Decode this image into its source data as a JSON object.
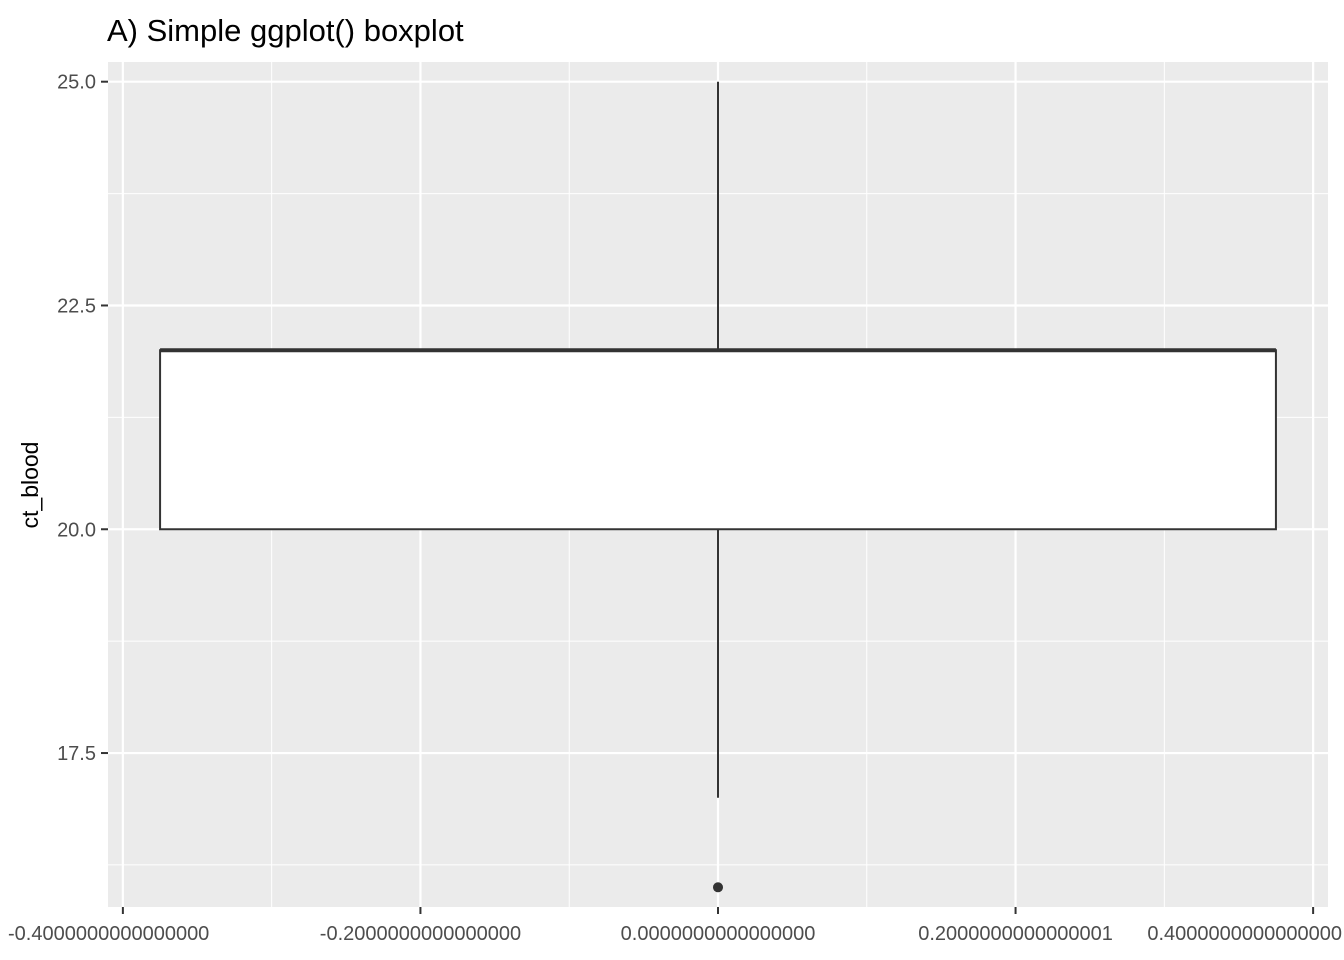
{
  "chart_data": {
    "type": "box",
    "title": "A) Simple ggplot() boxplot",
    "xlabel": "",
    "ylabel": "ct_blood",
    "xlim": [
      -0.41,
      0.41
    ],
    "ylim": [
      15.78,
      25.22
    ],
    "x_ticks": [
      {
        "value": -0.4,
        "label": "-0.4000000000000000"
      },
      {
        "value": -0.2,
        "label": "-0.2000000000000000"
      },
      {
        "value": 0.0,
        "label": "0.0000000000000000"
      },
      {
        "value": 0.2,
        "label": "0.2000000000000001"
      },
      {
        "value": 0.4,
        "label": "0.4000000000000000"
      }
    ],
    "y_ticks": [
      {
        "value": 17.5,
        "label": "17.5"
      },
      {
        "value": 20.0,
        "label": "20.0"
      },
      {
        "value": 22.5,
        "label": "22.5"
      },
      {
        "value": 25.0,
        "label": "25.0"
      }
    ],
    "grid": true,
    "background": "#ebebeb",
    "box": {
      "x": 0.0,
      "width": 0.75,
      "lower_whisker": 17.0,
      "q1": 20.0,
      "median": 22.0,
      "q3": 22.0,
      "upper_whisker": 25.0,
      "outliers": [
        16.0
      ],
      "fill": "#ffffff",
      "line_color": "#333333"
    }
  }
}
